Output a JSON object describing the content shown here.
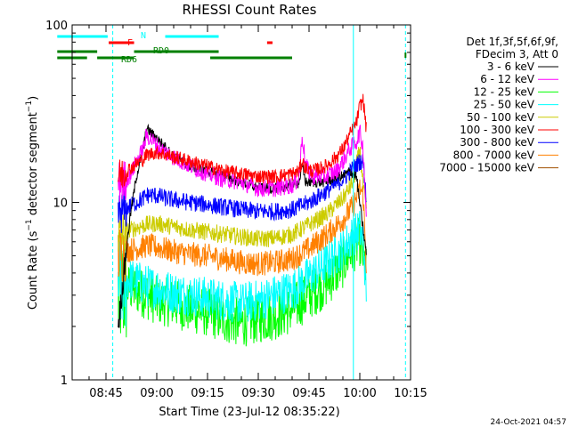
{
  "chart_data": {
    "type": "line",
    "title": "RHESSI Count Rates",
    "xlabel": "Start Time (23-Jul-12 08:35:22)",
    "ylabel": "Count Rate (s^-1 detector segment^-1)",
    "ylabel_main": "Count Rate (s",
    "ylabel_sup1": "−1",
    "ylabel_mid": " detector segment",
    "ylabel_sup2": "−1",
    "ylabel_end": ")",
    "y_scale": "log",
    "ylim": [
      1,
      100
    ],
    "xlim_minutes": [
      0,
      100
    ],
    "x_ticks": [
      {
        "label": "08:45",
        "min": 10
      },
      {
        "label": "09:00",
        "min": 25
      },
      {
        "label": "09:15",
        "min": 40
      },
      {
        "label": "09:30",
        "min": 55
      },
      {
        "label": "09:45",
        "min": 70
      },
      {
        "label": "10:00",
        "min": 85
      },
      {
        "label": "10:15",
        "min": 100
      }
    ],
    "y_tick_labels": [
      {
        "label": "1",
        "value": 1
      },
      {
        "label": "10",
        "value": 10
      },
      {
        "label": "100",
        "value": 100
      }
    ],
    "legend": {
      "placement": "right",
      "header": [
        "Det 1f,3f,5f,6f,9f,",
        "FDecim 3, Att 0"
      ]
    },
    "series": [
      {
        "name": "3 - 6 keV",
        "color": "#000000",
        "points": [
          [
            13.6,
            2
          ],
          [
            15,
            3.5
          ],
          [
            17,
            8
          ],
          [
            19,
            14
          ],
          [
            21,
            20
          ],
          [
            22,
            26
          ],
          [
            24,
            24
          ],
          [
            26,
            22
          ],
          [
            28,
            20
          ],
          [
            30,
            18
          ],
          [
            35,
            16
          ],
          [
            40,
            15
          ],
          [
            45,
            14
          ],
          [
            50,
            13
          ],
          [
            55,
            12
          ],
          [
            60,
            12
          ],
          [
            65,
            12.5
          ],
          [
            67,
            13
          ],
          [
            68,
            16
          ],
          [
            69,
            13
          ],
          [
            71,
            13
          ],
          [
            75,
            13
          ],
          [
            78,
            14
          ],
          [
            80,
            14
          ],
          [
            82,
            15
          ],
          [
            84,
            14
          ],
          [
            86,
            7
          ],
          [
            87,
            5
          ]
        ]
      },
      {
        "name": "6 - 12 keV",
        "color": "#ff00ff",
        "points": [
          [
            13.6,
            13
          ],
          [
            15,
            13
          ],
          [
            17,
            14
          ],
          [
            19,
            17
          ],
          [
            21,
            20
          ],
          [
            22,
            24
          ],
          [
            24,
            22
          ],
          [
            26,
            20
          ],
          [
            28,
            19
          ],
          [
            30,
            18
          ],
          [
            35,
            16
          ],
          [
            40,
            14.5
          ],
          [
            45,
            13.5
          ],
          [
            50,
            13
          ],
          [
            55,
            12
          ],
          [
            60,
            12
          ],
          [
            65,
            12.5
          ],
          [
            67,
            13.5
          ],
          [
            68,
            24
          ],
          [
            69,
            16
          ],
          [
            71,
            14
          ],
          [
            75,
            14
          ],
          [
            78,
            15
          ],
          [
            80,
            17
          ],
          [
            82,
            20
          ],
          [
            84,
            22
          ],
          [
            85,
            25
          ],
          [
            86,
            20
          ],
          [
            87,
            8
          ]
        ]
      },
      {
        "name": "12 - 25 keV",
        "color": "#00ff00",
        "points": [
          [
            13.6,
            3
          ],
          [
            15,
            3.2
          ],
          [
            17,
            3.3
          ],
          [
            19,
            3.2
          ],
          [
            22,
            3
          ],
          [
            25,
            2.8
          ],
          [
            30,
            2.7
          ],
          [
            35,
            2.5
          ],
          [
            40,
            2.4
          ],
          [
            45,
            2.2
          ],
          [
            50,
            2.1
          ],
          [
            55,
            2.2
          ],
          [
            60,
            2.3
          ],
          [
            65,
            2.5
          ],
          [
            70,
            3
          ],
          [
            75,
            3.5
          ],
          [
            80,
            4.5
          ],
          [
            83,
            5.5
          ],
          [
            85,
            6
          ],
          [
            86,
            5
          ],
          [
            87,
            4
          ]
        ]
      },
      {
        "name": "25 - 50 keV",
        "color": "#00ffff",
        "points": [
          [
            13.6,
            3.4
          ],
          [
            15,
            3.6
          ],
          [
            17,
            3.7
          ],
          [
            19,
            3.6
          ],
          [
            22,
            3.4
          ],
          [
            25,
            3.3
          ],
          [
            30,
            3.1
          ],
          [
            35,
            3
          ],
          [
            40,
            2.9
          ],
          [
            45,
            2.8
          ],
          [
            50,
            2.7
          ],
          [
            55,
            2.8
          ],
          [
            60,
            3
          ],
          [
            65,
            3.2
          ],
          [
            70,
            3.8
          ],
          [
            75,
            4.5
          ],
          [
            80,
            5.5
          ],
          [
            83,
            6.5
          ],
          [
            85,
            7
          ],
          [
            86,
            6
          ],
          [
            87,
            3
          ]
        ]
      },
      {
        "name": "50 - 100 keV",
        "color": "#cccc00",
        "points": [
          [
            13.6,
            6.5
          ],
          [
            15,
            6.8
          ],
          [
            17,
            7
          ],
          [
            19,
            7.2
          ],
          [
            22,
            7.5
          ],
          [
            25,
            7.6
          ],
          [
            30,
            7.3
          ],
          [
            35,
            7
          ],
          [
            40,
            6.8
          ],
          [
            45,
            6.6
          ],
          [
            50,
            6.4
          ],
          [
            55,
            6.2
          ],
          [
            60,
            6.3
          ],
          [
            65,
            6.6
          ],
          [
            70,
            7.5
          ],
          [
            75,
            8.5
          ],
          [
            80,
            10.5
          ],
          [
            83,
            13
          ],
          [
            85,
            20
          ],
          [
            86,
            12
          ],
          [
            87,
            9
          ]
        ]
      },
      {
        "name": "100 - 300 keV",
        "color": "#ff0000",
        "points": [
          [
            13.6,
            14
          ],
          [
            15,
            14.5
          ],
          [
            17,
            15.5
          ],
          [
            19,
            16.5
          ],
          [
            21,
            17.5
          ],
          [
            22,
            18.5
          ],
          [
            24,
            19
          ],
          [
            26,
            19
          ],
          [
            28,
            18.5
          ],
          [
            30,
            18
          ],
          [
            35,
            17
          ],
          [
            40,
            16
          ],
          [
            45,
            15
          ],
          [
            50,
            14.5
          ],
          [
            55,
            14
          ],
          [
            60,
            14
          ],
          [
            65,
            14.5
          ],
          [
            67,
            15
          ],
          [
            68,
            17
          ],
          [
            69,
            15.5
          ],
          [
            71,
            15
          ],
          [
            75,
            16
          ],
          [
            78,
            18
          ],
          [
            80,
            20
          ],
          [
            82,
            24
          ],
          [
            84,
            28
          ],
          [
            85,
            35
          ],
          [
            86,
            38
          ],
          [
            87,
            25
          ]
        ]
      },
      {
        "name": "300 - 800 keV",
        "color": "#0000ff",
        "points": [
          [
            13.6,
            8.5
          ],
          [
            15,
            9
          ],
          [
            17,
            9.5
          ],
          [
            19,
            10
          ],
          [
            21,
            10.5
          ],
          [
            22,
            11
          ],
          [
            24,
            11
          ],
          [
            26,
            10.8
          ],
          [
            28,
            10.5
          ],
          [
            30,
            10.3
          ],
          [
            35,
            10
          ],
          [
            40,
            9.7
          ],
          [
            45,
            9.4
          ],
          [
            50,
            9.1
          ],
          [
            55,
            8.9
          ],
          [
            60,
            8.9
          ],
          [
            65,
            9.1
          ],
          [
            70,
            10
          ],
          [
            75,
            11.5
          ],
          [
            80,
            13.5
          ],
          [
            83,
            15.5
          ],
          [
            85,
            17
          ],
          [
            86,
            17
          ],
          [
            87,
            10
          ]
        ]
      },
      {
        "name": "800 - 7000 keV",
        "color": "#ff8000",
        "points": [
          [
            13.6,
            5
          ],
          [
            15,
            5.2
          ],
          [
            17,
            5.4
          ],
          [
            19,
            5.5
          ],
          [
            22,
            5.7
          ],
          [
            25,
            5.6
          ],
          [
            30,
            5.3
          ],
          [
            35,
            5.1
          ],
          [
            40,
            5
          ],
          [
            45,
            4.8
          ],
          [
            50,
            4.6
          ],
          [
            55,
            4.5
          ],
          [
            60,
            4.6
          ],
          [
            65,
            4.8
          ],
          [
            70,
            5.5
          ],
          [
            75,
            6.5
          ],
          [
            80,
            8
          ],
          [
            83,
            9.5
          ],
          [
            85,
            12
          ],
          [
            86,
            11
          ],
          [
            87,
            4
          ]
        ]
      },
      {
        "name": "7000 - 15000 keV",
        "color": "#a05000",
        "points": []
      }
    ],
    "annotations": [
      {
        "label": "N",
        "color": "#00ffff",
        "segments": [
          [
            -4.4,
            10.5
          ],
          [
            27.5,
            43.3
          ]
        ]
      },
      {
        "label": "F",
        "color": "#ff0000",
        "segments": [
          [
            10.8,
            18.3
          ],
          [
            57.6,
            59.2
          ]
        ]
      },
      {
        "label": "RD0",
        "color": "#008000",
        "segments": [
          [
            -4.4,
            7.4
          ],
          [
            18.3,
            43.3
          ]
        ]
      },
      {
        "label": "RD6",
        "color": "#008000",
        "segments": [
          [
            -4.4,
            4.4
          ],
          [
            7.4,
            18.3
          ],
          [
            40.8,
            65.0
          ]
        ]
      }
    ],
    "vertical_markers_min": [
      12.0,
      83.1,
      98.5
    ]
  },
  "footer_timestamp": "24-Oct-2021 04:57"
}
